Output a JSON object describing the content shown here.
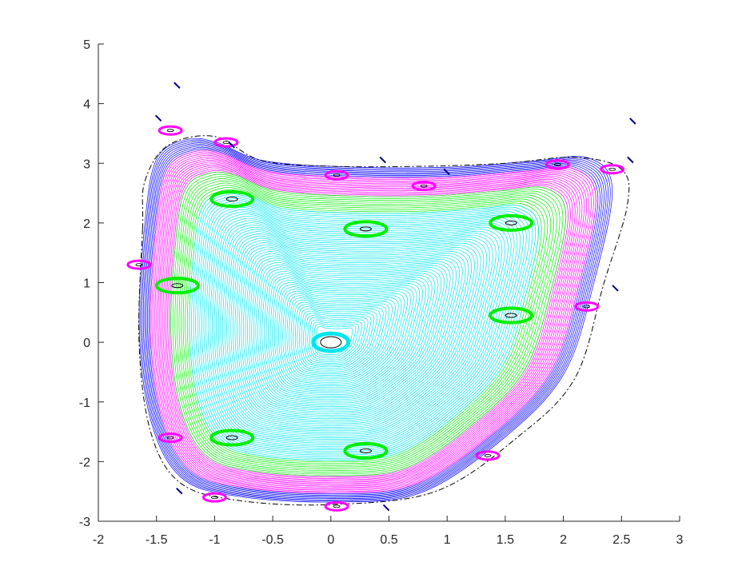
{
  "chart_data": {
    "type": "line",
    "title": "",
    "xlabel": "",
    "ylabel": "",
    "xlim": [
      -2,
      3
    ],
    "ylim": [
      -3,
      5
    ],
    "x_ticks": [
      "-2",
      "-1.5",
      "-1",
      "-0.5",
      "0",
      "0.5",
      "1",
      "1.5",
      "2",
      "2.5",
      "3"
    ],
    "y_ticks": [
      "-3",
      "-2",
      "-1",
      "0",
      "1",
      "2",
      "3",
      "4",
      "5"
    ],
    "grid": false,
    "box": "left-bottom",
    "colors": {
      "inner_core": "#00e5ee",
      "resonance_band": "#00ee00",
      "outer_layer": "#ff00ff",
      "boundary_layer": "#0000ff",
      "separatrix": "#000000",
      "islands_outer": "#000080",
      "axes": "#262626"
    },
    "center": [
      0,
      0
    ],
    "series": [
      {
        "group": "inner_core",
        "color": "#00e5ee",
        "r_range": [
          0.08,
          0.76
        ],
        "count": 62
      },
      {
        "group": "resonance_band",
        "color": "#00ee00",
        "r_range": [
          0.76,
          0.86
        ],
        "count": 10
      },
      {
        "group": "outer_layer",
        "color": "#ff00ff",
        "r_range": [
          0.86,
          0.97
        ],
        "count": 14
      },
      {
        "group": "boundary_layer",
        "color": "#0000ff",
        "r_range": [
          0.97,
          1.03
        ],
        "count": 9
      }
    ],
    "separatrix_curve": [
      [
        -1.62,
        1.9
      ],
      [
        -1.6,
        2.7
      ],
      [
        -1.4,
        3.3
      ],
      [
        -1.0,
        3.45
      ],
      [
        -0.6,
        3.05
      ],
      [
        0.0,
        2.95
      ],
      [
        0.8,
        2.95
      ],
      [
        1.5,
        3.0
      ],
      [
        2.1,
        3.1
      ],
      [
        2.5,
        2.9
      ],
      [
        2.55,
        2.3
      ],
      [
        2.35,
        1.0
      ],
      [
        2.1,
        -0.6
      ],
      [
        1.6,
        -1.6
      ],
      [
        0.9,
        -2.5
      ],
      [
        0.0,
        -2.72
      ],
      [
        -0.8,
        -2.65
      ],
      [
        -1.3,
        -2.35
      ],
      [
        -1.55,
        -1.5
      ],
      [
        -1.65,
        0.0
      ],
      [
        -1.62,
        1.9
      ]
    ],
    "boundary_shape": [
      [
        -1.55,
        2.0
      ],
      [
        -1.45,
        3.0
      ],
      [
        -1.2,
        3.3
      ],
      [
        -0.95,
        3.25
      ],
      [
        -0.55,
        2.95
      ],
      [
        0.2,
        2.85
      ],
      [
        1.0,
        2.85
      ],
      [
        1.7,
        2.95
      ],
      [
        2.15,
        3.0
      ],
      [
        2.35,
        2.5
      ],
      [
        2.2,
        1.0
      ],
      [
        1.95,
        -0.5
      ],
      [
        1.45,
        -1.55
      ],
      [
        0.75,
        -2.45
      ],
      [
        0.0,
        -2.6
      ],
      [
        -0.8,
        -2.5
      ],
      [
        -1.25,
        -2.2
      ],
      [
        -1.5,
        -1.3
      ],
      [
        -1.6,
        0.2
      ],
      [
        -1.55,
        2.0
      ]
    ],
    "resonance_points": [
      [
        -0.85,
        2.4
      ],
      [
        -1.32,
        0.95
      ],
      [
        -0.85,
        -1.6
      ],
      [
        0.3,
        -1.82
      ],
      [
        1.55,
        0.45
      ],
      [
        1.55,
        2.0
      ],
      [
        0.3,
        1.9
      ]
    ],
    "small_islands": [
      {
        "x": -1.38,
        "y": 3.55,
        "color": "#ff00ff"
      },
      {
        "x": -0.9,
        "y": 3.35,
        "color": "#ff00ff"
      },
      {
        "x": 0.05,
        "y": 2.8,
        "color": "#ff00ff"
      },
      {
        "x": 0.8,
        "y": 2.62,
        "color": "#ff00ff"
      },
      {
        "x": 1.95,
        "y": 2.98,
        "color": "#ff00ff"
      },
      {
        "x": 2.42,
        "y": 2.9,
        "color": "#ff00ff"
      },
      {
        "x": -1.65,
        "y": 1.3,
        "color": "#ff00ff"
      },
      {
        "x": -1.38,
        "y": -1.6,
        "color": "#ff00ff"
      },
      {
        "x": -1.0,
        "y": -2.6,
        "color": "#ff00ff"
      },
      {
        "x": 0.05,
        "y": -2.75,
        "color": "#ff00ff"
      },
      {
        "x": 2.2,
        "y": 0.6,
        "color": "#ff00ff"
      },
      {
        "x": 1.35,
        "y": -1.9,
        "color": "#ff00ff"
      }
    ],
    "tiny_marks": [
      {
        "x": -1.32,
        "y": 4.3
      },
      {
        "x": -1.48,
        "y": 3.75
      },
      {
        "x": -0.85,
        "y": 3.3
      },
      {
        "x": 0.45,
        "y": 3.05
      },
      {
        "x": 1.0,
        "y": 2.85
      },
      {
        "x": 2.6,
        "y": 3.7
      },
      {
        "x": 2.58,
        "y": 3.05
      },
      {
        "x": -1.3,
        "y": -2.5
      },
      {
        "x": 0.48,
        "y": -2.78
      },
      {
        "x": 2.45,
        "y": 0.9
      }
    ]
  }
}
